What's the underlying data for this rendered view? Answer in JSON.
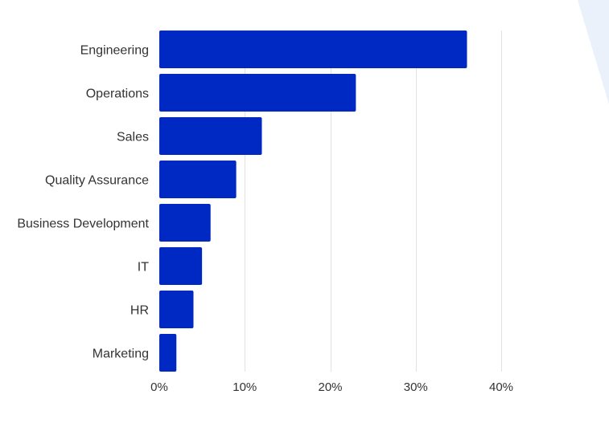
{
  "chart_data": {
    "type": "bar",
    "orientation": "horizontal",
    "title": "",
    "xlabel": "",
    "ylabel": "",
    "categories": [
      "Engineering",
      "Operations",
      "Sales",
      "Quality Assurance",
      "Business Development",
      "IT",
      "HR",
      "Marketing"
    ],
    "values": [
      36,
      23,
      12,
      9,
      6,
      5,
      4,
      2
    ],
    "value_unit": "%",
    "xlim": [
      0,
      40
    ],
    "ticks": [
      0,
      10,
      20,
      30,
      40
    ],
    "tick_labels": [
      "0%",
      "10%",
      "20%",
      "30%",
      "40%"
    ],
    "grid": true,
    "legend": "none"
  },
  "colors": {
    "bar": "#0029c3",
    "grid": "#e2e2e2",
    "text": "#333333",
    "decor": "#eaf1fb"
  }
}
